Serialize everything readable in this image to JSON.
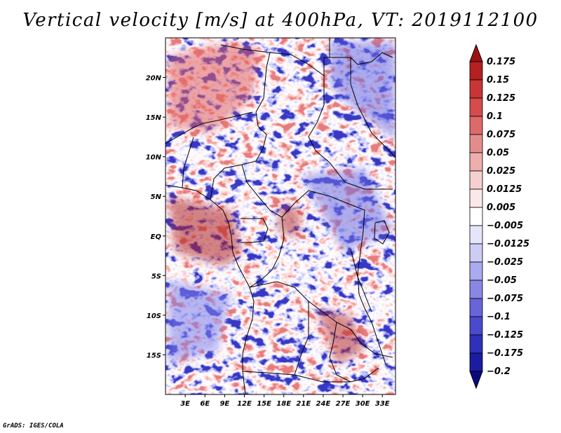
{
  "chart_data": {
    "type": "heatmap",
    "title": "Vertical velocity [m/s] at 400hPa, VT: 2019112100",
    "x_ticks": [
      {
        "value": 3,
        "label": "3E"
      },
      {
        "value": 6,
        "label": "6E"
      },
      {
        "value": 9,
        "label": "9E"
      },
      {
        "value": 12,
        "label": "12E"
      },
      {
        "value": 15,
        "label": "15E"
      },
      {
        "value": 18,
        "label": "18E"
      },
      {
        "value": 21,
        "label": "21E"
      },
      {
        "value": 24,
        "label": "24E"
      },
      {
        "value": 27,
        "label": "27E"
      },
      {
        "value": 30,
        "label": "30E"
      },
      {
        "value": 33,
        "label": "33E"
      }
    ],
    "y_ticks": [
      {
        "value": 20,
        "label": "20N"
      },
      {
        "value": 15,
        "label": "15N"
      },
      {
        "value": 10,
        "label": "10N"
      },
      {
        "value": 5,
        "label": "5N"
      },
      {
        "value": 0,
        "label": "EQ"
      },
      {
        "value": -5,
        "label": "5S"
      },
      {
        "value": -10,
        "label": "10S"
      },
      {
        "value": -15,
        "label": "15S"
      }
    ],
    "xlim": [
      0,
      35
    ],
    "ylim": [
      -20,
      25
    ],
    "colorbar": {
      "levels": [
        "0.175",
        "0.15",
        "0.125",
        "0.1",
        "0.075",
        "0.05",
        "0.025",
        "0.0125",
        "0.005",
        "−0.005",
        "−0.0125",
        "−0.025",
        "−0.05",
        "−0.075",
        "−0.1",
        "−0.125",
        "−0.175",
        "−0.2"
      ],
      "colors": [
        "#a01010",
        "#b52020",
        "#c83535",
        "#d44c4c",
        "#dc6a6a",
        "#e48c8c",
        "#eeaeae",
        "#f6d0d0",
        "#fbe8e8",
        "#ffffff",
        "#e6e6fa",
        "#ccccf5",
        "#aaaaf0",
        "#8888e4",
        "#6666d8",
        "#4a4acc",
        "#3030b8",
        "#1c1ca0",
        "#0a0a80"
      ]
    }
  },
  "credit": "GrADS: IGES/COLA"
}
